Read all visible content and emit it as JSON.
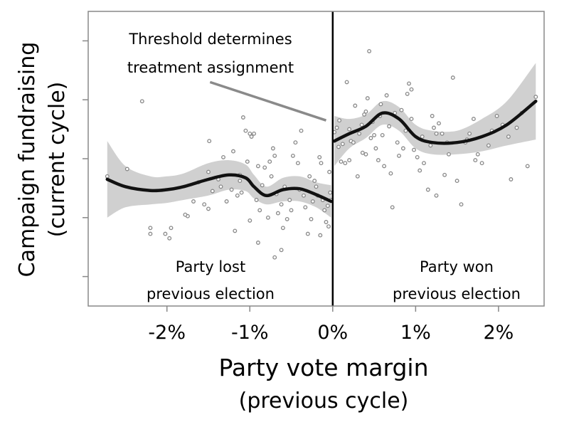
{
  "chart_data": {
    "type": "scatter",
    "xlabel": [
      "Party vote margin",
      "(previous cycle)"
    ],
    "ylabel": [
      "Campaign fundraising",
      "(current cycle)"
    ],
    "x_ticks": [
      {
        "value": -2,
        "label": "-2%"
      },
      {
        "value": -1,
        "label": "-1%"
      },
      {
        "value": 0,
        "label": "0%"
      },
      {
        "value": 1,
        "label": "1%"
      },
      {
        "value": 2,
        "label": "2%"
      }
    ],
    "xlim": [
      -2.95,
      2.55
    ],
    "ylim": [
      0,
      10
    ],
    "y_ticks": [
      1,
      3,
      5,
      7,
      9
    ],
    "y_tick_labels_shown": false,
    "grid": false,
    "threshold": 0,
    "annotations": {
      "threshold_text": [
        "Threshold determines",
        "treatment assignment"
      ],
      "left_region": [
        "Party lost",
        "previous election"
      ],
      "right_region": [
        "Party won",
        "previous election"
      ]
    },
    "arrow": {
      "from": [
        -1.48,
        7.6
      ],
      "to": [
        -0.08,
        6.3
      ]
    },
    "colors": {
      "points": "#888888",
      "fit": "#111111",
      "band": "#d0d0d0",
      "arrow": "#8a8a8a",
      "frame": "#888888"
    },
    "fit_left": {
      "x": [
        -2.72,
        -2.5,
        -2.2,
        -2.0,
        -1.8,
        -1.5,
        -1.25,
        -1.05,
        -0.95,
        -0.8,
        -0.6,
        -0.4,
        -0.2,
        -0.02
      ],
      "y": [
        4.3,
        4.05,
        3.92,
        3.95,
        4.05,
        4.3,
        4.45,
        4.35,
        4.05,
        3.75,
        3.95,
        3.98,
        3.78,
        3.55
      ],
      "lower": [
        3.0,
        3.35,
        3.45,
        3.5,
        3.6,
        3.75,
        3.95,
        3.9,
        3.65,
        3.45,
        3.55,
        3.55,
        3.35,
        3.0
      ],
      "upper": [
        5.6,
        4.75,
        4.4,
        4.4,
        4.5,
        4.85,
        4.95,
        4.8,
        4.45,
        4.05,
        4.35,
        4.4,
        4.2,
        4.1
      ]
    },
    "fit_right": {
      "x": [
        0.02,
        0.2,
        0.4,
        0.6,
        0.8,
        1.0,
        1.2,
        1.5,
        1.8,
        2.1,
        2.45
      ],
      "y": [
        5.6,
        5.85,
        6.1,
        6.55,
        6.35,
        5.75,
        5.55,
        5.55,
        5.75,
        6.15,
        6.95
      ],
      "lower": [
        4.75,
        5.35,
        5.7,
        6.15,
        5.95,
        5.35,
        5.15,
        5.15,
        5.25,
        5.45,
        5.65
      ],
      "upper": [
        6.45,
        6.35,
        6.5,
        6.95,
        6.75,
        6.15,
        5.95,
        5.95,
        6.35,
        6.95,
        8.25
      ]
    },
    "points": [
      [
        -2.72,
        4.4
      ],
      [
        -2.48,
        4.65
      ],
      [
        -2.3,
        6.95
      ],
      [
        -2.2,
        2.65
      ],
      [
        -2.2,
        2.45
      ],
      [
        -2.02,
        2.45
      ],
      [
        -1.97,
        2.3
      ],
      [
        -1.95,
        2.65
      ],
      [
        -1.75,
        3.05
      ],
      [
        -1.68,
        3.55
      ],
      [
        -1.62,
        4.2
      ],
      [
        -1.55,
        3.45
      ],
      [
        -1.5,
        3.3
      ],
      [
        -1.49,
        5.6
      ],
      [
        -1.45,
        3.9
      ],
      [
        -1.38,
        4.3
      ],
      [
        -1.35,
        4.05
      ],
      [
        -1.32,
        5.05
      ],
      [
        -1.28,
        3.55
      ],
      [
        -1.22,
        3.95
      ],
      [
        -1.2,
        5.25
      ],
      [
        -1.18,
        2.55
      ],
      [
        -1.15,
        3.75
      ],
      [
        -1.12,
        4.25
      ],
      [
        -1.1,
        3.85
      ],
      [
        -1.08,
        6.4
      ],
      [
        -1.05,
        5.95
      ],
      [
        -1.03,
        4.9
      ],
      [
        -1.0,
        5.85
      ],
      [
        -0.98,
        5.75
      ],
      [
        -0.95,
        5.85
      ],
      [
        -0.92,
        3.6
      ],
      [
        -0.9,
        4.75
      ],
      [
        -0.88,
        3.25
      ],
      [
        -0.85,
        4.1
      ],
      [
        -0.82,
        4.7
      ],
      [
        -0.78,
        3.0
      ],
      [
        -0.76,
        4.9
      ],
      [
        -0.74,
        4.4
      ],
      [
        -0.72,
        5.35
      ],
      [
        -0.7,
        5.1
      ],
      [
        -0.68,
        3.8
      ],
      [
        -0.66,
        3.15
      ],
      [
        -0.62,
        3.45
      ],
      [
        -0.6,
        2.65
      ],
      [
        -0.58,
        4.05
      ],
      [
        -0.55,
        2.95
      ],
      [
        -0.52,
        3.6
      ],
      [
        -0.5,
        3.25
      ],
      [
        -0.48,
        5.1
      ],
      [
        -0.45,
        5.55
      ],
      [
        -0.42,
        4.85
      ],
      [
        -0.4,
        3.95
      ],
      [
        -0.38,
        5.95
      ],
      [
        -0.35,
        3.75
      ],
      [
        -0.33,
        3.35
      ],
      [
        -0.3,
        2.45
      ],
      [
        -0.28,
        4.4
      ],
      [
        -0.26,
        2.95
      ],
      [
        -0.24,
        3.55
      ],
      [
        -0.22,
        4.25
      ],
      [
        -0.2,
        4.05
      ],
      [
        -0.18,
        3.75
      ],
      [
        -0.16,
        5.05
      ],
      [
        -0.14,
        4.85
      ],
      [
        -0.12,
        3.6
      ],
      [
        -0.1,
        3.25
      ],
      [
        -0.08,
        2.85
      ],
      [
        -0.06,
        3.4
      ],
      [
        -0.04,
        4.55
      ],
      [
        -0.03,
        3.85
      ],
      [
        -0.02,
        3.6
      ],
      [
        -0.05,
        2.7
      ],
      [
        -0.15,
        2.4
      ],
      [
        -0.9,
        2.15
      ],
      [
        -0.7,
        1.65
      ],
      [
        -0.62,
        1.9
      ],
      [
        -1.0,
        2.9
      ],
      [
        -1.12,
        4.45
      ],
      [
        -1.5,
        4.55
      ],
      [
        -1.78,
        3.1
      ],
      [
        0.02,
        5.9
      ],
      [
        0.05,
        6.05
      ],
      [
        0.07,
        5.4
      ],
      [
        0.08,
        6.3
      ],
      [
        0.1,
        4.9
      ],
      [
        0.12,
        5.5
      ],
      [
        0.15,
        4.85
      ],
      [
        0.17,
        7.6
      ],
      [
        0.2,
        6.0
      ],
      [
        0.22,
        5.6
      ],
      [
        0.25,
        5.55
      ],
      [
        0.27,
        6.8
      ],
      [
        0.3,
        4.4
      ],
      [
        0.32,
        5.85
      ],
      [
        0.35,
        6.15
      ],
      [
        0.36,
        5.2
      ],
      [
        0.38,
        6.5
      ],
      [
        0.4,
        5.15
      ],
      [
        0.42,
        7.05
      ],
      [
        0.44,
        8.65
      ],
      [
        0.46,
        5.7
      ],
      [
        0.48,
        6.25
      ],
      [
        0.5,
        5.8
      ],
      [
        0.52,
        5.35
      ],
      [
        0.55,
        4.95
      ],
      [
        0.57,
        6.45
      ],
      [
        0.6,
        5.8
      ],
      [
        0.62,
        4.75
      ],
      [
        0.65,
        7.15
      ],
      [
        0.68,
        6.1
      ],
      [
        0.7,
        4.5
      ],
      [
        0.72,
        3.35
      ],
      [
        0.75,
        6.55
      ],
      [
        0.78,
        5.55
      ],
      [
        0.8,
        5.1
      ],
      [
        0.83,
        6.65
      ],
      [
        0.85,
        5.35
      ],
      [
        0.88,
        5.95
      ],
      [
        0.9,
        7.2
      ],
      [
        0.92,
        7.55
      ],
      [
        0.95,
        6.35
      ],
      [
        0.98,
        5.3
      ],
      [
        1.02,
        5.05
      ],
      [
        1.05,
        4.6
      ],
      [
        1.08,
        5.75
      ],
      [
        1.1,
        4.85
      ],
      [
        1.15,
        3.95
      ],
      [
        1.18,
        5.45
      ],
      [
        1.2,
        6.45
      ],
      [
        1.22,
        6.05
      ],
      [
        1.25,
        3.75
      ],
      [
        1.28,
        6.2
      ],
      [
        1.32,
        5.85
      ],
      [
        1.38,
        5.55
      ],
      [
        1.4,
        5.15
      ],
      [
        1.45,
        7.75
      ],
      [
        1.5,
        4.25
      ],
      [
        1.55,
        3.45
      ],
      [
        1.6,
        5.55
      ],
      [
        1.65,
        5.85
      ],
      [
        1.7,
        6.35
      ],
      [
        1.75,
        5.15
      ],
      [
        1.8,
        4.85
      ],
      [
        1.88,
        5.45
      ],
      [
        1.92,
        5.95
      ],
      [
        1.98,
        6.45
      ],
      [
        2.05,
        6.15
      ],
      [
        2.12,
        5.75
      ],
      [
        2.22,
        6.05
      ],
      [
        2.28,
        6.55
      ],
      [
        2.35,
        4.75
      ],
      [
        2.45,
        7.1
      ],
      [
        1.62,
        5.65
      ],
      [
        1.72,
        4.95
      ],
      [
        0.95,
        7.35
      ],
      [
        1.35,
        4.45
      ],
      [
        2.15,
        4.3
      ],
      [
        0.58,
        6.85
      ],
      [
        1.25,
        5.85
      ],
      [
        0.2,
        4.95
      ],
      [
        0.4,
        6.6
      ]
    ]
  }
}
